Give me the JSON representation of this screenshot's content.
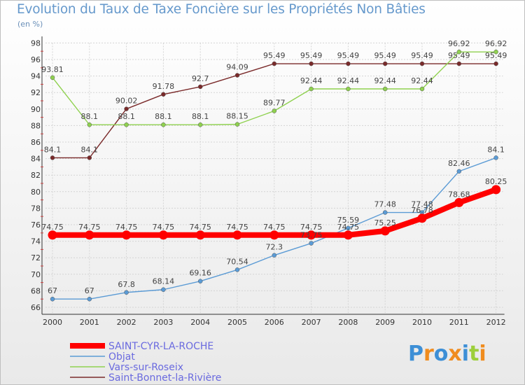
{
  "chart_data": {
    "type": "line",
    "title": "Evolution du Taux de Taxe Foncière sur les Propriétés Non Bâties",
    "ylabel": "(en %)",
    "xlabel": "",
    "categories": [
      "2000",
      "2001",
      "2002",
      "2003",
      "2004",
      "2005",
      "2006",
      "2007",
      "2008",
      "2009",
      "2010",
      "2011",
      "2012"
    ],
    "ylim": [
      66,
      98
    ],
    "yticks": [
      "66",
      "68",
      "70",
      "72",
      "74",
      "76",
      "78",
      "80",
      "82",
      "84",
      "86",
      "88",
      "90",
      "92",
      "94",
      "96",
      "98"
    ],
    "series": [
      {
        "name": "SAINT-CYR-LA-ROCHE",
        "color": "#ff0000",
        "values": [
          74.75,
          74.75,
          74.75,
          74.75,
          74.75,
          74.75,
          74.75,
          74.75,
          74.75,
          75.25,
          76.78,
          78.68,
          80.25
        ],
        "labels": [
          "74.75",
          "74.75",
          "74.75",
          "74.75",
          "74.75",
          "74.75",
          "74.75",
          "74.75",
          "74.75",
          "75.25",
          "76.78",
          "78.68",
          "80.25"
        ]
      },
      {
        "name": "Objat",
        "color": "#5b9bd5",
        "values": [
          67,
          67,
          67.8,
          68.14,
          69.16,
          70.54,
          72.3,
          73.75,
          75.59,
          77.48,
          77.48,
          82.46,
          84.1
        ],
        "labels": [
          "67",
          "67",
          "67.8",
          "68.14",
          "69.16",
          "70.54",
          "72.3",
          "73.75",
          "75.59",
          "77.48",
          "77.48",
          "82.46",
          "84.1"
        ]
      },
      {
        "name": "Vars-sur-Roseix",
        "color": "#8fd14f",
        "values": [
          93.81,
          88.1,
          88.1,
          88.1,
          88.1,
          88.15,
          89.77,
          92.44,
          92.44,
          92.44,
          92.44,
          96.92,
          96.92
        ],
        "labels": [
          "93.81",
          "88.1",
          "88.1",
          "88.1",
          "88.1",
          "88.15",
          "89.77",
          "92.44",
          "92.44",
          "92.44",
          "92.44",
          "96.92",
          "96.92"
        ]
      },
      {
        "name": "Saint-Bonnet-la-Rivière",
        "color": "#7a2a2a",
        "values": [
          84.1,
          84.1,
          90.02,
          91.78,
          92.7,
          94.09,
          95.49,
          95.49,
          95.49,
          95.49,
          95.49,
          95.49,
          95.49
        ],
        "labels": [
          "84.1",
          "84.1",
          "90.02",
          "91.78",
          "92.7",
          "94.09",
          "95.49",
          "95.49",
          "95.49",
          "95.49",
          "95.49",
          "95.49",
          "95.49"
        ]
      }
    ],
    "legend_position": "bottom-left"
  },
  "logo": {
    "letters": [
      "P",
      "r",
      "o",
      "x",
      "i",
      "t",
      "i"
    ],
    "colors": [
      "#3d8fd6",
      "#f08c1e",
      "#3d8fd6",
      "#f08c1e",
      "#3d8fd6",
      "#9ccf3a",
      "#f08c1e"
    ]
  }
}
